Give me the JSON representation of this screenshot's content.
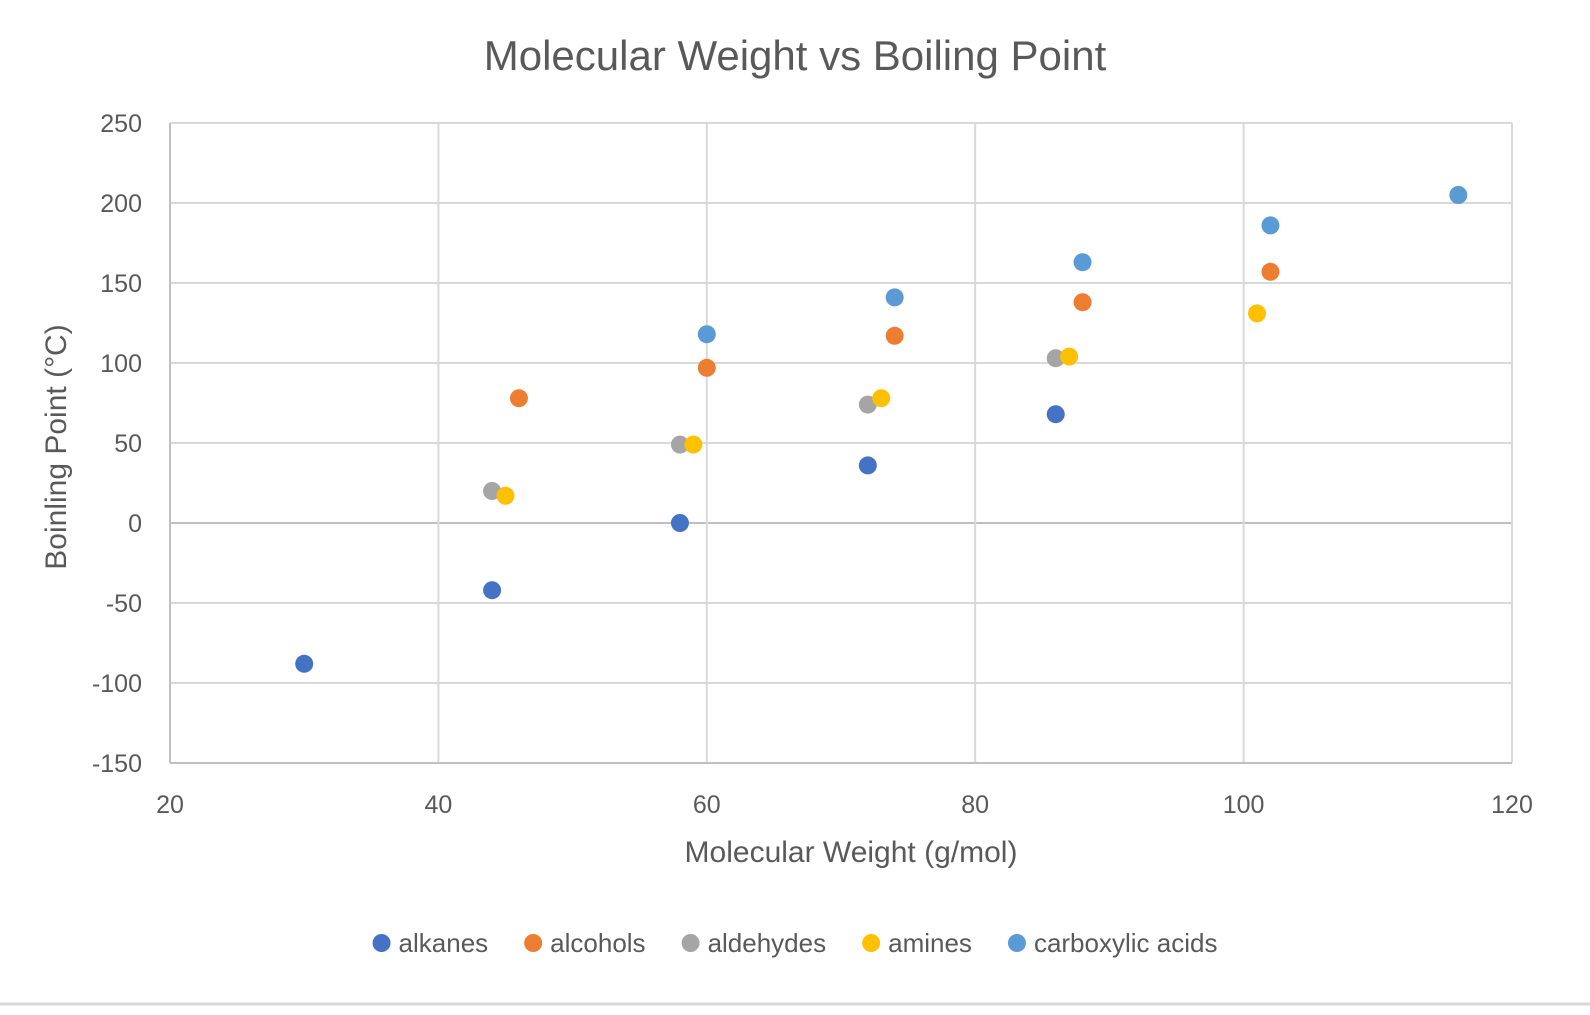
{
  "chart_data": {
    "type": "scatter",
    "title": "Molecular Weight vs Boiling Point",
    "xlabel": "Molecular Weight (g/mol)",
    "ylabel": "Boinling Point (°C)",
    "xlim": [
      20,
      120
    ],
    "ylim": [
      -150,
      250
    ],
    "x_ticks": [
      20,
      40,
      60,
      80,
      100,
      120
    ],
    "y_ticks": [
      -150,
      -100,
      -50,
      0,
      50,
      100,
      150,
      200,
      250
    ],
    "grid": true,
    "legend_position": "bottom",
    "series": [
      {
        "name": "alkanes",
        "color": "#4472C4",
        "points": [
          [
            30,
            -88
          ],
          [
            44,
            -42
          ],
          [
            58,
            0
          ],
          [
            72,
            36
          ],
          [
            86,
            68
          ]
        ]
      },
      {
        "name": "alcohols",
        "color": "#ED7D31",
        "points": [
          [
            46,
            78
          ],
          [
            60,
            97
          ],
          [
            74,
            117
          ],
          [
            88,
            138
          ],
          [
            102,
            157
          ]
        ]
      },
      {
        "name": "aldehydes",
        "color": "#A5A5A5",
        "points": [
          [
            44,
            20
          ],
          [
            58,
            49
          ],
          [
            72,
            74
          ],
          [
            86,
            103
          ]
        ]
      },
      {
        "name": "amines",
        "color": "#FFC000",
        "points": [
          [
            45,
            17
          ],
          [
            59,
            49
          ],
          [
            73,
            78
          ],
          [
            87,
            104
          ],
          [
            101,
            131
          ]
        ]
      },
      {
        "name": "carboxylic acids",
        "color": "#5B9BD5",
        "points": [
          [
            60,
            118
          ],
          [
            74,
            141
          ],
          [
            88,
            163
          ],
          [
            102,
            186
          ],
          [
            116,
            205
          ]
        ]
      }
    ]
  }
}
